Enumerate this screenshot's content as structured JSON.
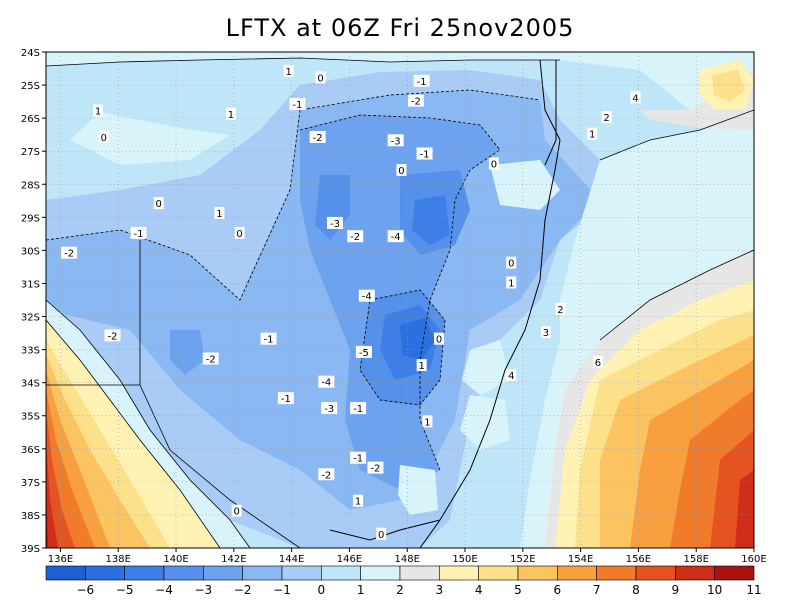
{
  "title": "LFTX at 06Z Fri 25nov2005",
  "chart_data": {
    "type": "heatmap",
    "title": "LFTX at 06Z Fri 25nov2005",
    "x_ticks": [
      "136E",
      "138E",
      "140E",
      "142E",
      "144E",
      "146E",
      "148E",
      "150E",
      "152E",
      "154E",
      "156E",
      "158E",
      "160E"
    ],
    "y_ticks": [
      "24S",
      "25S",
      "26S",
      "27S",
      "28S",
      "29S",
      "30S",
      "31S",
      "32S",
      "33S",
      "34S",
      "35S",
      "36S",
      "37S",
      "38S",
      "39S"
    ],
    "xlim": [
      135.5,
      160
    ],
    "ylim": [
      -39,
      -24
    ],
    "grid": true,
    "colorbar": {
      "labels": [
        "-6",
        "-5",
        "-4",
        "-3",
        "-2",
        "-1",
        "0",
        "1",
        "2",
        "3",
        "4",
        "5",
        "6",
        "7",
        "8",
        "9",
        "10",
        "11"
      ],
      "colors": [
        "#1f5fd6",
        "#2b6fe0",
        "#3d7fe6",
        "#5590ea",
        "#6da3ee",
        "#8ab8f2",
        "#a8ccf6",
        "#bfe6f8",
        "#d8f4fa",
        "#e6e6e6",
        "#fff2b3",
        "#fde08a",
        "#fbc460",
        "#f8a040",
        "#f07b2b",
        "#e55320",
        "#cf2f19",
        "#a81510"
      ],
      "placement": "bottom"
    },
    "contour_labels": [
      {
        "text": "1",
        "lon": 143.9,
        "lat": -24.6
      },
      {
        "text": "0",
        "lon": 145.0,
        "lat": -24.8
      },
      {
        "text": "-1",
        "lon": 148.5,
        "lat": -24.9
      },
      {
        "text": "1",
        "lon": 137.3,
        "lat": -25.8
      },
      {
        "text": "1",
        "lon": 141.9,
        "lat": -25.9
      },
      {
        "text": "-1",
        "lon": 144.2,
        "lat": -25.6
      },
      {
        "text": "-2",
        "lon": 148.3,
        "lat": -25.5
      },
      {
        "text": "0",
        "lon": 137.5,
        "lat": -26.6
      },
      {
        "text": "-2",
        "lon": 144.9,
        "lat": -26.6
      },
      {
        "text": "-3",
        "lon": 147.6,
        "lat": -26.7
      },
      {
        "text": "-1",
        "lon": 148.6,
        "lat": -27.1
      },
      {
        "text": "0",
        "lon": 147.8,
        "lat": -27.6
      },
      {
        "text": "0",
        "lon": 151.0,
        "lat": -27.4
      },
      {
        "text": "1",
        "lon": 154.4,
        "lat": -26.5
      },
      {
        "text": "2",
        "lon": 154.9,
        "lat": -26.0
      },
      {
        "text": "4",
        "lon": 155.9,
        "lat": -25.4
      },
      {
        "text": "0",
        "lon": 139.4,
        "lat": -28.6
      },
      {
        "text": "1",
        "lon": 141.5,
        "lat": -28.9
      },
      {
        "text": "0",
        "lon": 142.2,
        "lat": -29.5
      },
      {
        "text": "-1",
        "lon": 138.7,
        "lat": -29.5
      },
      {
        "text": "-3",
        "lon": 145.5,
        "lat": -29.2
      },
      {
        "text": "-2",
        "lon": 146.2,
        "lat": -29.6
      },
      {
        "text": "-4",
        "lon": 147.6,
        "lat": -29.6
      },
      {
        "text": "-2",
        "lon": 136.3,
        "lat": -30.1
      },
      {
        "text": "0",
        "lon": 151.6,
        "lat": -30.4
      },
      {
        "text": "1",
        "lon": 151.6,
        "lat": -31.0
      },
      {
        "text": "-4",
        "lon": 146.6,
        "lat": -31.4
      },
      {
        "text": "2",
        "lon": 153.3,
        "lat": -31.8
      },
      {
        "text": "3",
        "lon": 152.8,
        "lat": -32.5
      },
      {
        "text": "-2",
        "lon": 137.8,
        "lat": -32.6
      },
      {
        "text": "-1",
        "lon": 143.2,
        "lat": -32.7
      },
      {
        "text": "0",
        "lon": 149.1,
        "lat": -32.7
      },
      {
        "text": "-5",
        "lon": 146.5,
        "lat": -33.1
      },
      {
        "text": "-2",
        "lon": 141.2,
        "lat": -33.3
      },
      {
        "text": "6",
        "lon": 154.6,
        "lat": -33.4
      },
      {
        "text": "1",
        "lon": 148.5,
        "lat": -33.5
      },
      {
        "text": "4",
        "lon": 151.6,
        "lat": -33.8
      },
      {
        "text": "-4",
        "lon": 145.2,
        "lat": -34.0
      },
      {
        "text": "-1",
        "lon": 143.8,
        "lat": -34.5
      },
      {
        "text": "-3",
        "lon": 145.3,
        "lat": -34.8
      },
      {
        "text": "-1",
        "lon": 146.3,
        "lat": -34.8
      },
      {
        "text": "1",
        "lon": 148.7,
        "lat": -35.2
      },
      {
        "text": "-1",
        "lon": 146.3,
        "lat": -36.3
      },
      {
        "text": "-2",
        "lon": 146.9,
        "lat": -36.6
      },
      {
        "text": "-2",
        "lon": 145.2,
        "lat": -36.8
      },
      {
        "text": "0",
        "lon": 142.1,
        "lat": -37.9
      },
      {
        "text": "0",
        "lon": 147.1,
        "lat": -38.6
      },
      {
        "text": "1",
        "lon": 146.3,
        "lat": -37.6
      }
    ]
  }
}
